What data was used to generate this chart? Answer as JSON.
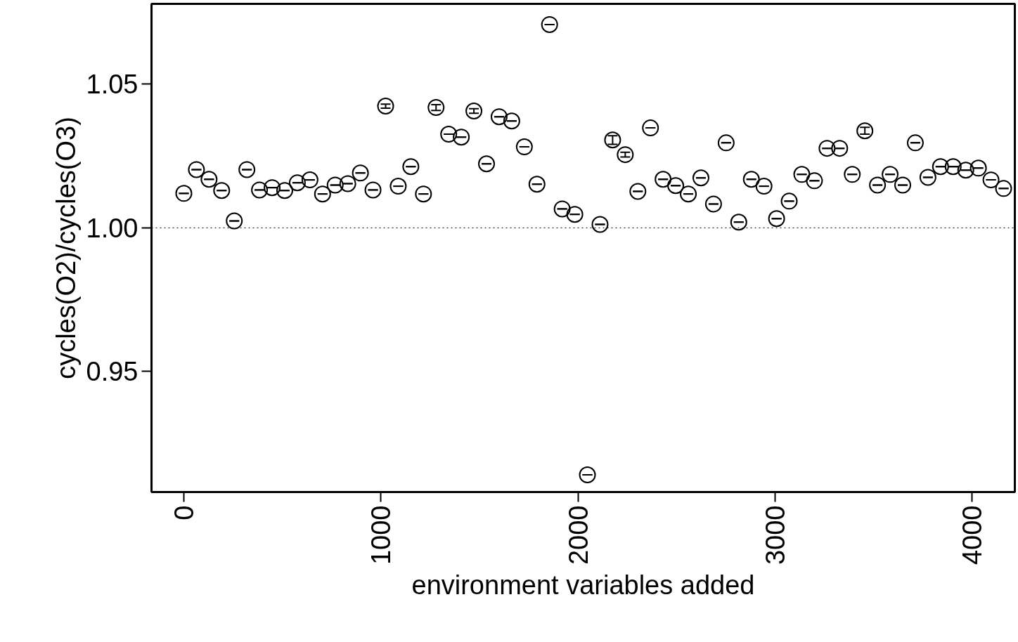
{
  "chart_data": {
    "type": "scatter",
    "xlabel": "environment variables added",
    "ylabel": "cycles(O2)/cycles(O3)",
    "xlim": [
      -164,
      4217
    ],
    "ylim": [
      0.908,
      1.078
    ],
    "xticks": [
      0,
      1000,
      2000,
      3000,
      4000
    ],
    "yticks": [
      {
        "value": 0.95,
        "label": "0.95"
      },
      {
        "value": 1.0,
        "label": "1.00"
      },
      {
        "value": 1.05,
        "label": "1.05"
      }
    ],
    "marker": "circle",
    "grid": false,
    "ref_lines": [
      {
        "axis": "y",
        "value": 1.0,
        "line_style": "dotted",
        "color": "#000000"
      }
    ],
    "series": [
      {
        "color": "#000000",
        "x": [
          0,
          64,
          128,
          192,
          256,
          320,
          384,
          448,
          512,
          576,
          640,
          704,
          768,
          832,
          896,
          960,
          1024,
          1088,
          1152,
          1216,
          1280,
          1344,
          1408,
          1472,
          1536,
          1600,
          1664,
          1728,
          1792,
          1856,
          1920,
          1984,
          2048,
          2112,
          2176,
          2240,
          2304,
          2368,
          2432,
          2496,
          2560,
          2624,
          2688,
          2752,
          2816,
          2880,
          2944,
          3008,
          3072,
          3136,
          3200,
          3264,
          3328,
          3392,
          3456,
          3520,
          3584,
          3648,
          3712,
          3776,
          3840,
          3904,
          3968,
          4032,
          4096,
          4160
        ],
        "values": [
          1.012,
          1.0203,
          1.0169,
          1.013,
          1.0024,
          1.0203,
          1.0132,
          1.014,
          1.013,
          1.0157,
          1.0167,
          1.0118,
          1.0149,
          1.0154,
          1.0191,
          1.0132,
          1.0424,
          1.0145,
          1.0213,
          1.0118,
          1.0419,
          1.0326,
          1.0316,
          1.0407,
          1.0223,
          1.0387,
          1.0372,
          1.0282,
          1.0152,
          1.0708,
          1.0066,
          1.0047,
          0.914,
          1.0012,
          1.0306,
          1.0255,
          1.0127,
          1.0348,
          1.0169,
          1.0147,
          1.0118,
          1.0174,
          1.0083,
          1.0296,
          1.002,
          1.0169,
          1.0145,
          1.0032,
          1.0093,
          1.0186,
          1.0164,
          1.0277,
          1.0277,
          1.0186,
          1.0338,
          1.0149,
          1.0186,
          1.0149,
          1.0296,
          1.0176,
          1.0213,
          1.0213,
          1.0201,
          1.0208,
          1.0167,
          1.0137
        ],
        "errors": [
          null,
          null,
          null,
          null,
          null,
          null,
          null,
          null,
          null,
          null,
          null,
          null,
          null,
          null,
          null,
          null,
          0.0007,
          null,
          null,
          null,
          0.001,
          null,
          null,
          0.0008,
          null,
          null,
          null,
          null,
          null,
          null,
          null,
          null,
          null,
          null,
          0.0015,
          0.0008,
          null,
          null,
          null,
          null,
          null,
          null,
          null,
          null,
          null,
          null,
          null,
          null,
          null,
          null,
          null,
          null,
          null,
          null,
          0.0012,
          null,
          null,
          null,
          null,
          null,
          null,
          null,
          null,
          null,
          null,
          null
        ]
      }
    ]
  }
}
